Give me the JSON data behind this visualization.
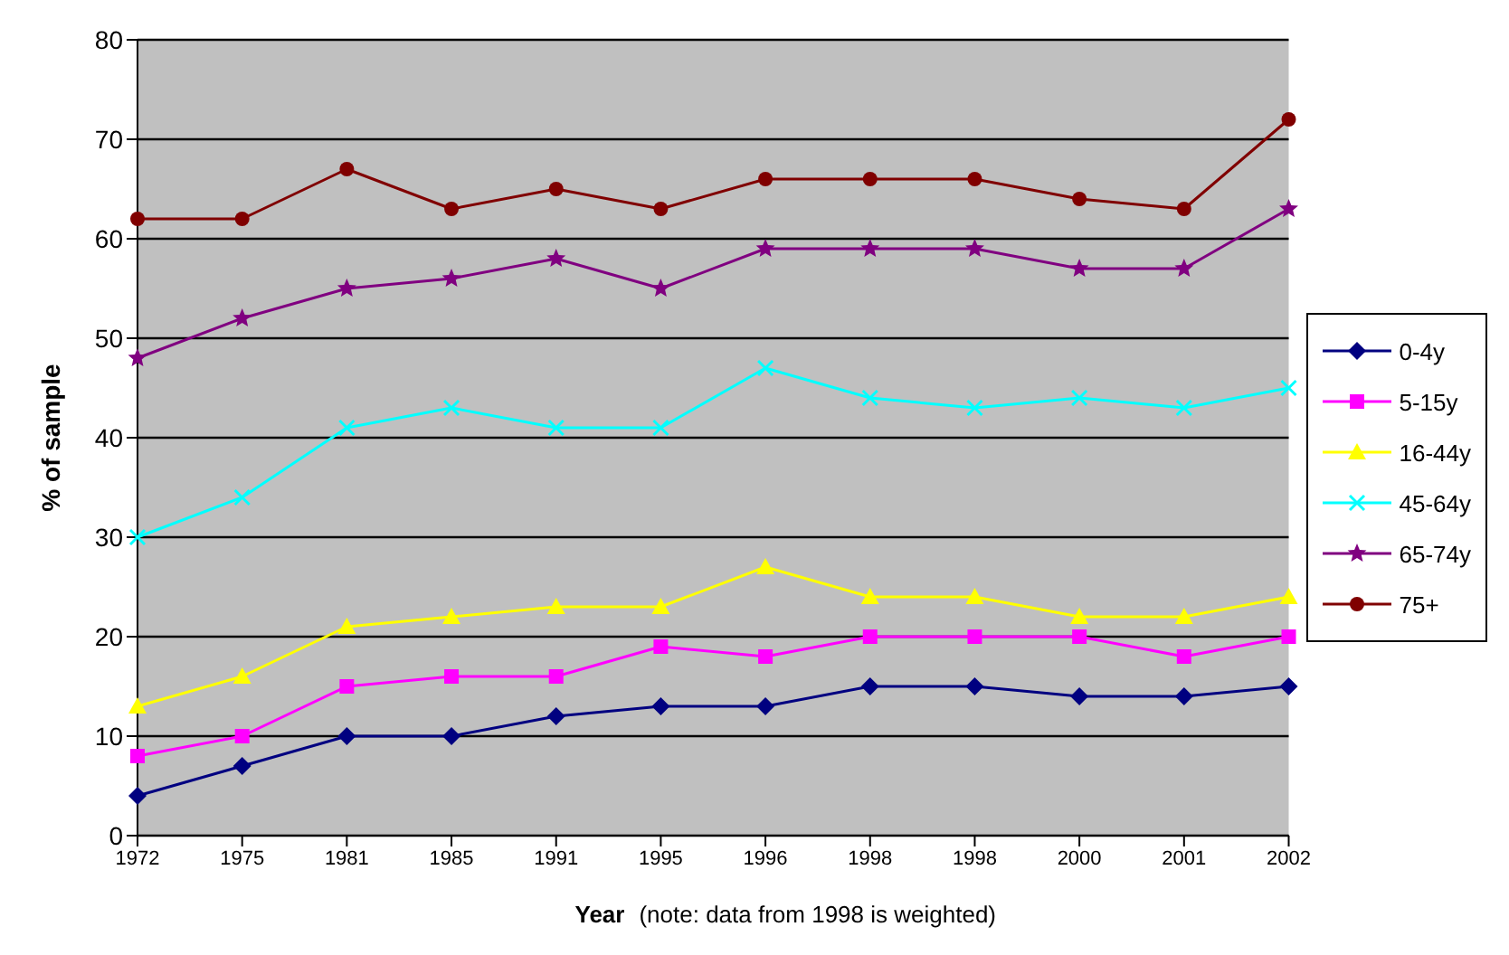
{
  "chart_data": {
    "type": "line",
    "xlabel": "Year",
    "ylabel": "% of sample",
    "annotations": [
      "(note: data from 1998 is weighted)"
    ],
    "categories": [
      "1972",
      "1975",
      "1981",
      "1985",
      "1991",
      "1995",
      "1996",
      "1998",
      "1998",
      "2000",
      "2001",
      "2002"
    ],
    "ylim": [
      0,
      80
    ],
    "yticks": [
      0,
      10,
      20,
      30,
      40,
      50,
      60,
      70,
      80
    ],
    "grid": "y",
    "legend": "right",
    "series": [
      {
        "name": "0-4y",
        "color": "#000080",
        "marker": "diamond",
        "values": [
          4,
          7,
          10,
          10,
          12,
          13,
          13,
          15,
          15,
          14,
          14,
          15
        ]
      },
      {
        "name": "5-15y",
        "color": "#ff00ff",
        "marker": "square",
        "values": [
          8,
          10,
          15,
          16,
          16,
          19,
          18,
          20,
          20,
          20,
          18,
          20
        ]
      },
      {
        "name": "16-44y",
        "color": "#ffff00",
        "marker": "triangle",
        "values": [
          13,
          16,
          21,
          22,
          23,
          23,
          27,
          24,
          24,
          22,
          22,
          24
        ]
      },
      {
        "name": "45-64y",
        "color": "#00ffff",
        "marker": "cross",
        "values": [
          30,
          34,
          41,
          43,
          41,
          41,
          47,
          44,
          43,
          44,
          43,
          45
        ]
      },
      {
        "name": "65-74y",
        "color": "#800080",
        "marker": "star",
        "values": [
          48,
          52,
          55,
          56,
          58,
          55,
          59,
          59,
          59,
          57,
          57,
          63
        ]
      },
      {
        "name": "75+",
        "color": "#800000",
        "marker": "circle",
        "values": [
          62,
          62,
          67,
          63,
          65,
          63,
          66,
          66,
          66,
          64,
          63,
          72
        ]
      }
    ]
  }
}
